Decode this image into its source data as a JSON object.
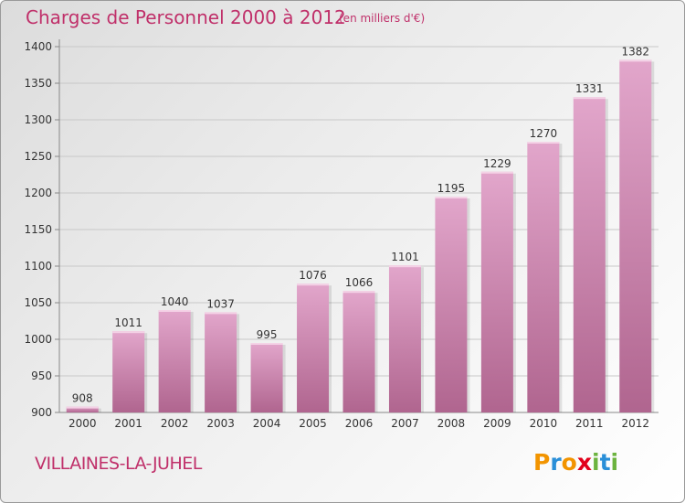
{
  "title": "Charges de Personnel 2000 à 2012",
  "subtitle": "(en milliers d'€)",
  "commune": "VILLAINES-LA-JUHEL",
  "logo": {
    "letters": [
      "P",
      "r",
      "o",
      "x",
      "i",
      "t",
      "i"
    ],
    "colors": [
      "#f29400",
      "#2a8fd8",
      "#f29400",
      "#e2001a",
      "#6cb33f",
      "#2a8fd8",
      "#6cb33f"
    ]
  },
  "colors": {
    "bar_top": "#e2a6cb",
    "bar_bottom": "#b0658f",
    "accent": "#c0306a"
  },
  "chart_data": {
    "type": "bar",
    "categories": [
      "2000",
      "2001",
      "2002",
      "2003",
      "2004",
      "2005",
      "2006",
      "2007",
      "2008",
      "2009",
      "2010",
      "2011",
      "2012"
    ],
    "values": [
      908,
      1011,
      1040,
      1037,
      995,
      1076,
      1066,
      1101,
      1195,
      1229,
      1270,
      1331,
      1382
    ],
    "data_labels": [
      "908",
      "1011",
      "1040",
      "1037",
      "995",
      "1076",
      "1066",
      "1101",
      "1195",
      "1229",
      "1270",
      "1331",
      "1382"
    ],
    "yticks": [
      "900",
      "950",
      "1000",
      "1050",
      "1100",
      "1150",
      "1200",
      "1250",
      "1300",
      "1350",
      "1400"
    ],
    "ylim": [
      900,
      1400
    ],
    "grid": true,
    "legend": "none"
  }
}
